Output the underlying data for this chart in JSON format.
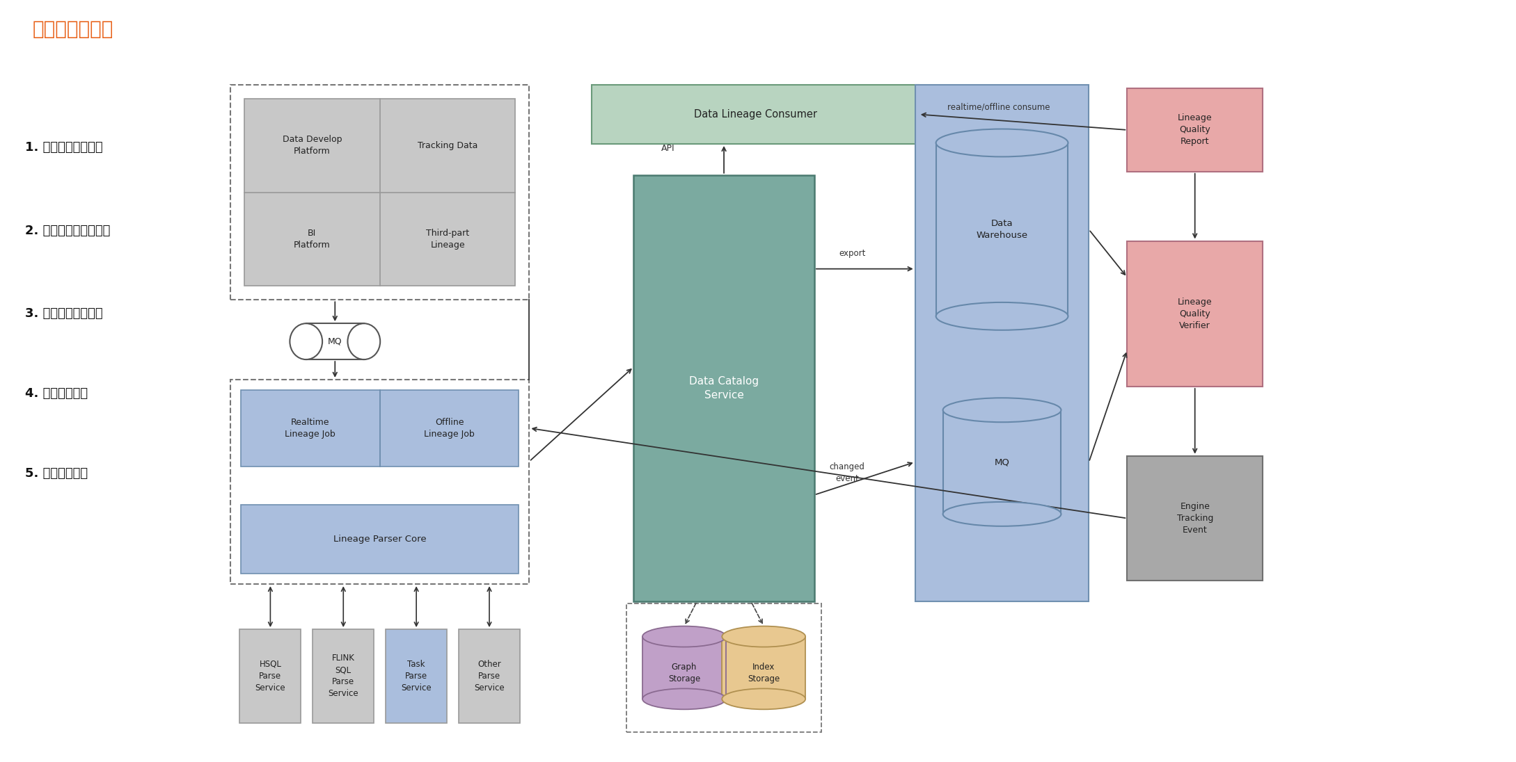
{
  "title": "第三版血缘架构",
  "title_color": "#E8621A",
  "bg_color": "#FFFFFF",
  "list_items": [
    "1. 增量和近实时更新",
    "2. 支持血缘标准化接入",
    "3. 插件化的解析服务",
    "4. 更多消费方式",
    "5. 血缘质量报表"
  ],
  "colors": {
    "gray_fill": "#C8C8C8",
    "gray_edge": "#999999",
    "blue_fill": "#AABEDD",
    "blue_edge": "#7090B0",
    "teal_fill": "#7BAAA0",
    "teal_edge": "#4A7A70",
    "green_fill": "#B8D4C0",
    "green_edge": "#6A9A7A",
    "pink_fill": "#E8A8A8",
    "pink_edge": "#B07080",
    "purple_fill": "#C0A0C8",
    "purple_edge": "#8A6A90",
    "orange_fill": "#E8C890",
    "orange_edge": "#B09050",
    "darkgray_fill": "#A8A8A8",
    "darkgray_edge": "#707070",
    "dashed_color": "#666666",
    "arrow_color": "#333333",
    "text_color": "#222222",
    "white": "#FFFFFF"
  }
}
